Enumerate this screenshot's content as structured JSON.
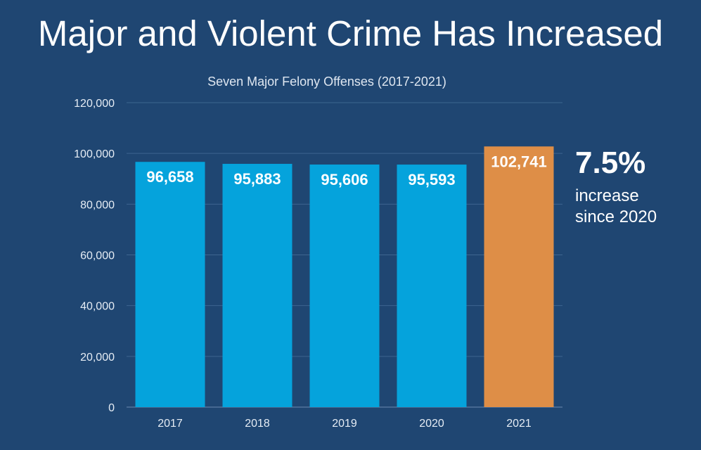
{
  "headline": "Major and Violent Crime Has Increased",
  "callout": {
    "percent": "7.5%",
    "line1": "increase",
    "line2": "since 2020"
  },
  "colors": {
    "background": "#1f4672",
    "bar": "#05a3dc",
    "highlight": "#de8e47",
    "gridline": "#3e6590"
  },
  "chart_data": {
    "type": "bar",
    "title": "Seven Major Felony Offenses (2017-2021)",
    "categories": [
      "2017",
      "2018",
      "2019",
      "2020",
      "2021"
    ],
    "values": [
      96658,
      95883,
      95606,
      95593,
      102741
    ],
    "value_labels": [
      "96,658",
      "95,883",
      "95,606",
      "95,593",
      "102,741"
    ],
    "highlight_category": "2021",
    "ylim": [
      0,
      120000
    ],
    "yticks": [
      0,
      20000,
      40000,
      60000,
      80000,
      100000,
      120000
    ],
    "ytick_labels": [
      "0",
      "20,000",
      "40,000",
      "60,000",
      "80,000",
      "100,000",
      "120,000"
    ],
    "xlabel": "",
    "ylabel": "",
    "grid": true
  }
}
